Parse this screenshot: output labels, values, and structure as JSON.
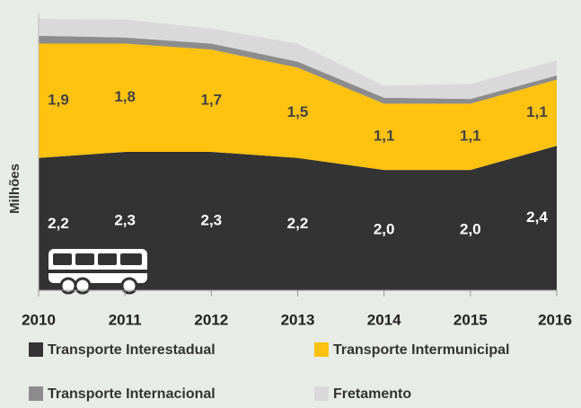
{
  "chart_data": {
    "type": "stacked_area",
    "y_axis_label": "Milhões",
    "categories": [
      "2010",
      "2011",
      "2012",
      "2013",
      "2014",
      "2015",
      "2016"
    ],
    "ylim": [
      0,
      4.6
    ],
    "series": [
      {
        "name": "Transporte Interestadual",
        "color": "#333333",
        "values": [
          2.2,
          2.3,
          2.3,
          2.2,
          2.0,
          2.0,
          2.4
        ],
        "value_labels": [
          "2,2",
          "2,3",
          "2,3",
          "2,2",
          "2,0",
          "2,0",
          "2,4"
        ]
      },
      {
        "name": "Transporte Intermunicipal",
        "color": "#ffc20e",
        "values": [
          1.9,
          1.8,
          1.7,
          1.5,
          1.1,
          1.1,
          1.1
        ],
        "value_labels": [
          "1,9",
          "1,8",
          "1,7",
          "1,5",
          "1,1",
          "1,1",
          "1,1"
        ]
      },
      {
        "name": "Transporte Internacional",
        "color": "#8c8c8c",
        "values": [
          0.13,
          0.1,
          0.1,
          0.1,
          0.1,
          0.08,
          0.07
        ]
      },
      {
        "name": "Fretamento",
        "color": "#d9d9d9",
        "values": [
          0.28,
          0.3,
          0.25,
          0.3,
          0.2,
          0.25,
          0.25
        ]
      }
    ]
  }
}
